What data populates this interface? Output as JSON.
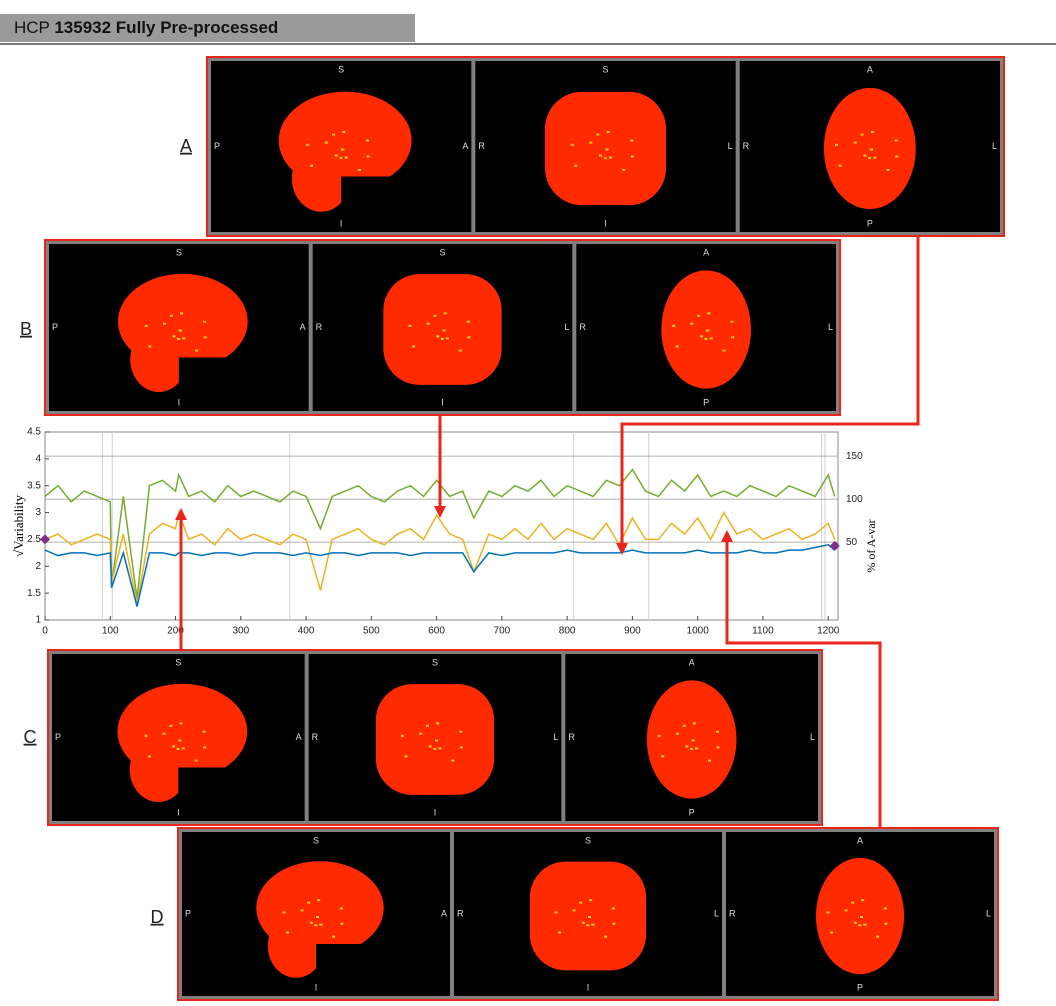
{
  "header": {
    "prefix": "HCP",
    "subject": "135932",
    "title": "Fully Pre-processed"
  },
  "panels": [
    {
      "label": "A"
    },
    {
      "label": "B"
    },
    {
      "label": "C"
    },
    {
      "label": "D"
    }
  ],
  "views": [
    {
      "top": "S",
      "bottom": "I",
      "left": "P",
      "right": "A"
    },
    {
      "top": "S",
      "bottom": "I",
      "left": "R",
      "right": "L"
    },
    {
      "top": "A",
      "bottom": "P",
      "left": "R",
      "right": "L"
    }
  ],
  "chart_data": {
    "type": "line",
    "ylabel": "√Variability",
    "y2label": "% of A-var",
    "x": [
      0,
      20,
      40,
      60,
      80,
      100,
      102,
      120,
      141,
      160,
      180,
      200,
      205,
      220,
      240,
      260,
      280,
      300,
      320,
      340,
      360,
      380,
      400,
      422,
      440,
      460,
      480,
      500,
      520,
      540,
      560,
      580,
      600,
      620,
      640,
      657,
      680,
      700,
      720,
      740,
      760,
      780,
      800,
      820,
      840,
      860,
      880,
      900,
      920,
      940,
      960,
      980,
      1000,
      1020,
      1040,
      1060,
      1080,
      1100,
      1120,
      1140,
      1160,
      1180,
      1200,
      1210
    ],
    "series": [
      {
        "color": "#77ac30",
        "values": [
          3.3,
          3.5,
          3.2,
          3.4,
          3.3,
          3.2,
          1.65,
          3.3,
          1.4,
          3.5,
          3.6,
          3.4,
          3.7,
          3.3,
          3.4,
          3.2,
          3.5,
          3.3,
          3.4,
          3.3,
          3.2,
          3.4,
          3.3,
          2.7,
          3.3,
          3.4,
          3.5,
          3.3,
          3.2,
          3.4,
          3.5,
          3.3,
          3.6,
          3.3,
          3.4,
          2.9,
          3.4,
          3.3,
          3.5,
          3.4,
          3.6,
          3.3,
          3.5,
          3.4,
          3.3,
          3.6,
          3.5,
          3.8,
          3.4,
          3.3,
          3.6,
          3.4,
          3.7,
          3.3,
          3.4,
          3.3,
          3.5,
          3.4,
          3.3,
          3.5,
          3.4,
          3.3,
          3.7,
          3.3
        ]
      },
      {
        "color": "#edb120",
        "values": [
          2.5,
          2.6,
          2.4,
          2.5,
          2.6,
          2.5,
          1.7,
          2.6,
          1.3,
          2.6,
          2.8,
          2.7,
          3.0,
          2.5,
          2.6,
          2.4,
          2.7,
          2.5,
          2.6,
          2.5,
          2.4,
          2.6,
          2.5,
          1.55,
          2.5,
          2.6,
          2.7,
          2.5,
          2.4,
          2.6,
          2.7,
          2.5,
          2.95,
          2.6,
          2.5,
          1.9,
          2.6,
          2.5,
          2.7,
          2.5,
          2.8,
          2.5,
          2.7,
          2.6,
          2.5,
          2.8,
          2.4,
          2.9,
          2.5,
          2.5,
          2.8,
          2.6,
          2.9,
          2.5,
          3.0,
          2.6,
          2.7,
          2.5,
          2.6,
          2.7,
          2.5,
          2.6,
          2.8,
          2.5
        ]
      },
      {
        "color": "#0072bd",
        "values": [
          2.3,
          2.2,
          2.25,
          2.25,
          2.2,
          2.25,
          1.6,
          2.25,
          1.25,
          2.25,
          2.25,
          2.2,
          2.25,
          2.25,
          2.2,
          2.25,
          2.25,
          2.2,
          2.25,
          2.25,
          2.25,
          2.2,
          2.25,
          2.2,
          2.25,
          2.25,
          2.2,
          2.25,
          2.25,
          2.25,
          2.2,
          2.25,
          2.25,
          2.25,
          2.25,
          1.9,
          2.25,
          2.2,
          2.25,
          2.25,
          2.25,
          2.25,
          2.3,
          2.25,
          2.25,
          2.25,
          2.25,
          2.3,
          2.25,
          2.25,
          2.25,
          2.25,
          2.3,
          2.25,
          2.25,
          2.25,
          2.3,
          2.25,
          2.25,
          2.3,
          2.3,
          2.35,
          2.4,
          2.3
        ]
      }
    ],
    "vlines": [
      88,
      103,
      375,
      810,
      925,
      1190,
      1195
    ],
    "markers": {
      "color": "#7e2f8e",
      "x": [
        0,
        1210
      ],
      "y": [
        2.5,
        2.38
      ]
    },
    "xlim": [
      0,
      1215
    ],
    "xticks": [
      0,
      100,
      200,
      300,
      400,
      500,
      600,
      700,
      800,
      900,
      1000,
      1100,
      1200
    ],
    "ylim": [
      1,
      4.5
    ],
    "yticks": [
      1,
      1.5,
      2,
      2.5,
      3,
      3.5,
      4,
      4.5
    ],
    "y2lim": [
      -40.6,
      178.1
    ],
    "y2ticks": [
      50,
      100,
      150
    ],
    "grid": true
  }
}
